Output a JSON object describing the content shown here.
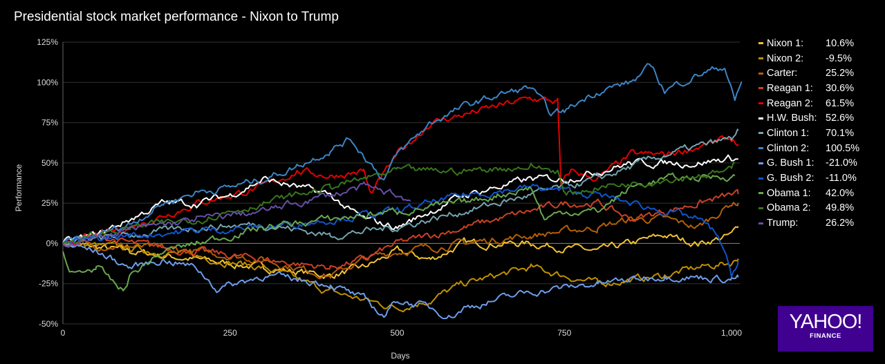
{
  "title": "Presidential stock market performance - Nixon to Trump",
  "chart_data": {
    "type": "line",
    "title": "Presidential stock market performance - Nixon to Trump",
    "xlabel": "Days",
    "ylabel": "Performance",
    "xlim": [
      0,
      1015
    ],
    "ylim": [
      -50,
      125
    ],
    "xticks": [
      0,
      250,
      500,
      750,
      1000
    ],
    "xtick_labels": [
      "0",
      "250",
      "500",
      "750",
      "1,000"
    ],
    "yticks": [
      -50,
      -25,
      0,
      25,
      50,
      75,
      100,
      125
    ],
    "ytick_labels": [
      "-50%",
      "-25%",
      "0%",
      "25%",
      "50%",
      "75%",
      "100%",
      "125%"
    ],
    "grid": true,
    "legend": "right",
    "series": [
      {
        "name": "Nixon 1:",
        "final": "10.6%",
        "color": "#f1c232",
        "points": [
          [
            0,
            0
          ],
          [
            100,
            -5
          ],
          [
            200,
            -10
          ],
          [
            300,
            -15
          ],
          [
            400,
            -20
          ],
          [
            450,
            -15
          ],
          [
            500,
            -5
          ],
          [
            550,
            -10
          ],
          [
            600,
            0
          ],
          [
            700,
            0
          ],
          [
            800,
            -5
          ],
          [
            850,
            0
          ],
          [
            900,
            5
          ],
          [
            950,
            0
          ],
          [
            1000,
            5
          ],
          [
            1010,
            10.6
          ]
        ]
      },
      {
        "name": "Nixon 2:",
        "final": "-9.5%",
        "color": "#bf9000",
        "points": [
          [
            0,
            0
          ],
          [
            100,
            -3
          ],
          [
            200,
            -8
          ],
          [
            300,
            -15
          ],
          [
            400,
            -30
          ],
          [
            450,
            -35
          ],
          [
            500,
            -40
          ],
          [
            550,
            -35
          ],
          [
            600,
            -25
          ],
          [
            700,
            -15
          ],
          [
            800,
            -25
          ],
          [
            900,
            -20
          ],
          [
            950,
            -15
          ],
          [
            1000,
            -12
          ],
          [
            1010,
            -9.5
          ]
        ]
      },
      {
        "name": "Carter:",
        "final": "25.2%",
        "color": "#b45f06",
        "points": [
          [
            0,
            0
          ],
          [
            100,
            -2
          ],
          [
            200,
            -5
          ],
          [
            300,
            -10
          ],
          [
            400,
            -20
          ],
          [
            450,
            -10
          ],
          [
            500,
            -5
          ],
          [
            600,
            0
          ],
          [
            700,
            5
          ],
          [
            800,
            10
          ],
          [
            850,
            15
          ],
          [
            900,
            15
          ],
          [
            950,
            10
          ],
          [
            1000,
            25
          ],
          [
            1010,
            25.2
          ]
        ]
      },
      {
        "name": "Reagan 1:",
        "final": "30.6%",
        "color": "#cc4125",
        "points": [
          [
            0,
            0
          ],
          [
            50,
            5
          ],
          [
            100,
            0
          ],
          [
            200,
            -5
          ],
          [
            300,
            -10
          ],
          [
            400,
            -15
          ],
          [
            450,
            -10
          ],
          [
            500,
            0
          ],
          [
            550,
            5
          ],
          [
            600,
            10
          ],
          [
            700,
            20
          ],
          [
            750,
            25
          ],
          [
            800,
            25
          ],
          [
            850,
            15
          ],
          [
            900,
            20
          ],
          [
            950,
            25
          ],
          [
            1000,
            30
          ],
          [
            1010,
            30.6
          ]
        ]
      },
      {
        "name": "Reagan 2:",
        "final": "61.5%",
        "color": "#e60000",
        "points": [
          [
            0,
            0
          ],
          [
            50,
            5
          ],
          [
            100,
            10
          ],
          [
            200,
            25
          ],
          [
            300,
            35
          ],
          [
            350,
            45
          ],
          [
            400,
            42
          ],
          [
            450,
            45
          ],
          [
            460,
            30
          ],
          [
            500,
            55
          ],
          [
            550,
            75
          ],
          [
            600,
            80
          ],
          [
            650,
            85
          ],
          [
            700,
            90
          ],
          [
            740,
            88
          ],
          [
            745,
            35
          ],
          [
            760,
            45
          ],
          [
            800,
            40
          ],
          [
            850,
            55
          ],
          [
            900,
            55
          ],
          [
            950,
            60
          ],
          [
            1000,
            65
          ],
          [
            1010,
            61.5
          ]
        ]
      },
      {
        "name": "H.W. Bush:",
        "final": "52.6%",
        "color": "#ffffff",
        "points": [
          [
            0,
            0
          ],
          [
            50,
            5
          ],
          [
            100,
            15
          ],
          [
            150,
            25
          ],
          [
            200,
            25
          ],
          [
            250,
            30
          ],
          [
            300,
            40
          ],
          [
            350,
            35
          ],
          [
            400,
            30
          ],
          [
            430,
            20
          ],
          [
            450,
            15
          ],
          [
            500,
            10
          ],
          [
            550,
            20
          ],
          [
            600,
            30
          ],
          [
            650,
            35
          ],
          [
            700,
            40
          ],
          [
            750,
            40
          ],
          [
            800,
            45
          ],
          [
            850,
            50
          ],
          [
            900,
            50
          ],
          [
            950,
            50
          ],
          [
            1000,
            53
          ],
          [
            1010,
            52.6
          ]
        ]
      },
      {
        "name": "Clinton 1:",
        "final": "70.1%",
        "color": "#76a5af",
        "points": [
          [
            0,
            0
          ],
          [
            100,
            5
          ],
          [
            200,
            10
          ],
          [
            300,
            12
          ],
          [
            400,
            5
          ],
          [
            500,
            10
          ],
          [
            600,
            20
          ],
          [
            700,
            30
          ],
          [
            800,
            40
          ],
          [
            900,
            55
          ],
          [
            1000,
            65
          ],
          [
            1010,
            70.1
          ]
        ]
      },
      {
        "name": "Clinton 2:",
        "final": "100.5%",
        "color": "#3d85c6",
        "points": [
          [
            0,
            0
          ],
          [
            50,
            5
          ],
          [
            100,
            12
          ],
          [
            150,
            25
          ],
          [
            200,
            32
          ],
          [
            250,
            35
          ],
          [
            300,
            40
          ],
          [
            350,
            48
          ],
          [
            400,
            58
          ],
          [
            430,
            65
          ],
          [
            450,
            55
          ],
          [
            480,
            40
          ],
          [
            500,
            55
          ],
          [
            550,
            75
          ],
          [
            600,
            85
          ],
          [
            650,
            92
          ],
          [
            700,
            97
          ],
          [
            730,
            80
          ],
          [
            750,
            82
          ],
          [
            780,
            90
          ],
          [
            800,
            95
          ],
          [
            850,
            100
          ],
          [
            880,
            110
          ],
          [
            900,
            95
          ],
          [
            950,
            105
          ],
          [
            990,
            110
          ],
          [
            1005,
            88
          ],
          [
            1015,
            100.5
          ]
        ]
      },
      {
        "name": "G. Bush 1:",
        "final": "-21.0%",
        "color": "#6d9eeb",
        "points": [
          [
            0,
            0
          ],
          [
            50,
            -5
          ],
          [
            100,
            -15
          ],
          [
            150,
            -10
          ],
          [
            200,
            -15
          ],
          [
            230,
            -28
          ],
          [
            300,
            -20
          ],
          [
            400,
            -25
          ],
          [
            450,
            -35
          ],
          [
            480,
            -45
          ],
          [
            500,
            -35
          ],
          [
            550,
            -40
          ],
          [
            580,
            -45
          ],
          [
            600,
            -40
          ],
          [
            700,
            -30
          ],
          [
            800,
            -25
          ],
          [
            900,
            -20
          ],
          [
            1000,
            -22
          ],
          [
            1010,
            -21
          ]
        ]
      },
      {
        "name": "G. Bush 2:",
        "final": "-11.0%",
        "color": "#1155cc",
        "points": [
          [
            0,
            0
          ],
          [
            100,
            5
          ],
          [
            200,
            8
          ],
          [
            300,
            10
          ],
          [
            400,
            15
          ],
          [
            500,
            20
          ],
          [
            600,
            30
          ],
          [
            700,
            35
          ],
          [
            800,
            30
          ],
          [
            900,
            20
          ],
          [
            950,
            15
          ],
          [
            980,
            5
          ],
          [
            1000,
            -20
          ],
          [
            1010,
            -11
          ]
        ]
      },
      {
        "name": "Obama 1:",
        "final": "42.0%",
        "color": "#6aa84f",
        "points": [
          [
            0,
            -5
          ],
          [
            10,
            -20
          ],
          [
            50,
            -15
          ],
          [
            90,
            -30
          ],
          [
            100,
            -20
          ],
          [
            150,
            -5
          ],
          [
            200,
            0
          ],
          [
            300,
            10
          ],
          [
            400,
            15
          ],
          [
            500,
            20
          ],
          [
            600,
            25
          ],
          [
            650,
            30
          ],
          [
            700,
            35
          ],
          [
            720,
            15
          ],
          [
            750,
            20
          ],
          [
            800,
            20
          ],
          [
            850,
            35
          ],
          [
            900,
            40
          ],
          [
            1000,
            42
          ],
          [
            1005,
            42
          ]
        ]
      },
      {
        "name": "Obama 2:",
        "final": "49.8%",
        "color": "#38761d",
        "points": [
          [
            0,
            0
          ],
          [
            50,
            5
          ],
          [
            100,
            10
          ],
          [
            200,
            15
          ],
          [
            250,
            20
          ],
          [
            300,
            25
          ],
          [
            400,
            35
          ],
          [
            500,
            45
          ],
          [
            600,
            45
          ],
          [
            700,
            48
          ],
          [
            740,
            45
          ],
          [
            750,
            30
          ],
          [
            800,
            35
          ],
          [
            900,
            40
          ],
          [
            1000,
            45
          ],
          [
            1005,
            49.8
          ]
        ]
      },
      {
        "name": "Trump:",
        "final": "26.2%",
        "color": "#674ea7",
        "points": [
          [
            0,
            0
          ],
          [
            100,
            8
          ],
          [
            200,
            15
          ],
          [
            300,
            20
          ],
          [
            400,
            30
          ],
          [
            450,
            35
          ],
          [
            500,
            30
          ],
          [
            520,
            26.2
          ]
        ]
      }
    ]
  },
  "logo": {
    "brand": "YAHOO!",
    "sub": "FINANCE",
    "color": "#400090"
  }
}
